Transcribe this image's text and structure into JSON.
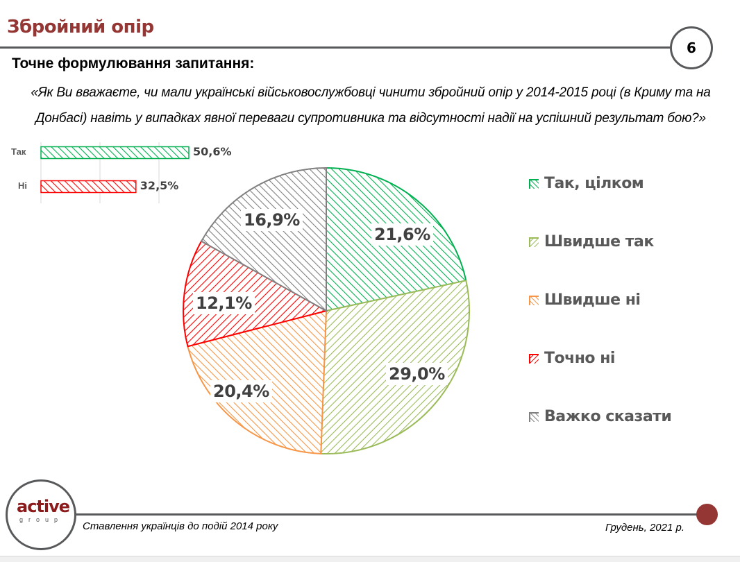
{
  "header": {
    "title": "Збройний опір",
    "page_number": "6",
    "question_label": "Точне формулювання запитання:",
    "question_text": "«Як Ви вважаєте, чи мали українські військовослужбовці чинити збройний опір у 2014-2015 році (в Криму та на Донбасі) навіть у випадках явної переваги супротивника та відсутності надії на успішний результат бою?»"
  },
  "footer": {
    "logo_main": "active",
    "logo_sub": "group",
    "subtitle": "Ставлення українців до подій 2014 року",
    "date": "Грудень, 2021 р."
  },
  "colors": {
    "title": "#943634",
    "rule": "#58595b",
    "accent_dot": "#943634"
  },
  "chart_data": [
    {
      "type": "bar",
      "orientation": "horizontal",
      "categories": [
        "Так",
        "Ні"
      ],
      "values": [
        50.6,
        32.5
      ],
      "value_labels": [
        "50,6%",
        "32,5%"
      ],
      "colors": [
        "#00b050",
        "#ff0000"
      ],
      "fill": "diagonal-hatch",
      "xlim": [
        0,
        60
      ],
      "grid": true
    },
    {
      "type": "pie",
      "start_angle": "12 o'clock",
      "direction": "clockwise",
      "categories": [
        "Так, цілком",
        "Швидше так",
        "Швидше ні",
        "Точно ні",
        "Важко сказати"
      ],
      "values": [
        21.6,
        29.0,
        20.4,
        12.1,
        16.9
      ],
      "value_labels": [
        "21,6%",
        "29,0%",
        "20,4%",
        "12,1%",
        "16,9%"
      ],
      "colors": [
        "#00b050",
        "#9bbb59",
        "#f79646",
        "#ff0000",
        "#808080"
      ],
      "hatch": [
        "back",
        "fwd",
        "back",
        "fwd",
        "back"
      ],
      "legend": "right"
    }
  ]
}
